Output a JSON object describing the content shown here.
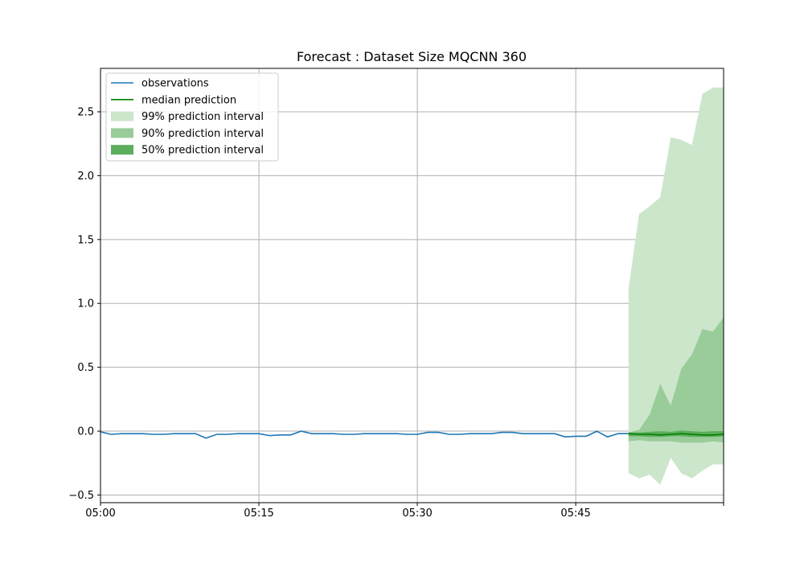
{
  "chart_data": {
    "type": "line",
    "title": "Forecast : Dataset Size MQCNN 360",
    "xlabel": "",
    "ylabel": "",
    "x_unit": "minute",
    "x_start": "05:00",
    "xlim": [
      "05:00",
      "05:59"
    ],
    "ylim": [
      -0.56,
      2.84
    ],
    "x_ticks": [
      "05:00",
      "05:15",
      "05:30",
      "05:45"
    ],
    "y_ticks": [
      "−0.5",
      "0.0",
      "0.5",
      "1.0",
      "1.5",
      "2.0",
      "2.5"
    ],
    "y_tick_values": [
      -0.5,
      0.0,
      0.5,
      1.0,
      1.5,
      2.0,
      2.5
    ],
    "grid": true,
    "legend_position": "top-left",
    "legend": [
      {
        "label": "observations",
        "color": "#1f77b4",
        "kind": "line"
      },
      {
        "label": "median prediction",
        "color": "#008000",
        "kind": "line"
      },
      {
        "label": "99% prediction interval",
        "color": "#cce6cc",
        "kind": "patch"
      },
      {
        "label": "90% prediction interval",
        "color": "#99cc99",
        "kind": "patch"
      },
      {
        "label": "50% prediction interval",
        "color": "#5cad5c",
        "kind": "patch"
      }
    ],
    "observations": {
      "name": "observations",
      "color": "#1f77b4",
      "x": [
        "05:00",
        "05:01",
        "05:02",
        "05:03",
        "05:04",
        "05:05",
        "05:06",
        "05:07",
        "05:08",
        "05:09",
        "05:10",
        "05:11",
        "05:12",
        "05:13",
        "05:14",
        "05:15",
        "05:16",
        "05:17",
        "05:18",
        "05:19",
        "05:20",
        "05:21",
        "05:22",
        "05:23",
        "05:24",
        "05:25",
        "05:26",
        "05:27",
        "05:28",
        "05:29",
        "05:30",
        "05:31",
        "05:32",
        "05:33",
        "05:34",
        "05:35",
        "05:36",
        "05:37",
        "05:38",
        "05:39",
        "05:40",
        "05:41",
        "05:42",
        "05:43",
        "05:44",
        "05:45",
        "05:46",
        "05:47",
        "05:48",
        "05:49",
        "05:50"
      ],
      "values": [
        -0.005,
        -0.025,
        -0.02,
        -0.02,
        -0.02,
        -0.025,
        -0.025,
        -0.02,
        -0.02,
        -0.02,
        -0.055,
        -0.025,
        -0.025,
        -0.02,
        -0.02,
        -0.02,
        -0.035,
        -0.03,
        -0.03,
        0.0,
        -0.02,
        -0.02,
        -0.02,
        -0.025,
        -0.025,
        -0.02,
        -0.02,
        -0.02,
        -0.02,
        -0.025,
        -0.025,
        -0.01,
        -0.01,
        -0.025,
        -0.025,
        -0.02,
        -0.02,
        -0.02,
        -0.01,
        -0.01,
        -0.02,
        -0.02,
        -0.02,
        -0.02,
        -0.045,
        -0.04,
        -0.04,
        0.0,
        -0.045,
        -0.02,
        -0.02
      ]
    },
    "forecast": {
      "x": [
        "05:50",
        "05:51",
        "05:52",
        "05:53",
        "05:54",
        "05:55",
        "05:56",
        "05:57",
        "05:58",
        "05:59"
      ],
      "median": {
        "name": "median prediction",
        "color": "#008000",
        "values": [
          -0.02,
          -0.025,
          -0.025,
          -0.03,
          -0.025,
          -0.02,
          -0.025,
          -0.03,
          -0.03,
          -0.025
        ]
      },
      "interval_99": {
        "name": "99% prediction interval",
        "color": "#cce6cc",
        "lower": [
          -0.33,
          -0.37,
          -0.34,
          -0.42,
          -0.21,
          -0.33,
          -0.37,
          -0.31,
          -0.26,
          -0.26
        ],
        "upper": [
          1.12,
          1.7,
          1.76,
          1.83,
          2.3,
          2.28,
          2.24,
          2.64,
          2.69,
          2.69
        ]
      },
      "interval_90": {
        "name": "90% prediction interval",
        "color": "#99cc99",
        "lower": [
          -0.08,
          -0.07,
          -0.08,
          -0.08,
          -0.08,
          -0.09,
          -0.09,
          -0.09,
          -0.08,
          -0.09
        ],
        "upper": [
          -0.01,
          0.01,
          0.13,
          0.37,
          0.2,
          0.49,
          0.6,
          0.8,
          0.78,
          0.89
        ]
      },
      "interval_50": {
        "name": "50% prediction interval",
        "color": "#5cad5c",
        "lower": [
          -0.04,
          -0.04,
          -0.045,
          -0.045,
          -0.04,
          -0.04,
          -0.045,
          -0.045,
          -0.045,
          -0.04
        ],
        "upper": [
          -0.01,
          -0.01,
          -0.005,
          0.0,
          -0.005,
          0.005,
          0.0,
          -0.005,
          0.0,
          0.0
        ]
      }
    }
  }
}
